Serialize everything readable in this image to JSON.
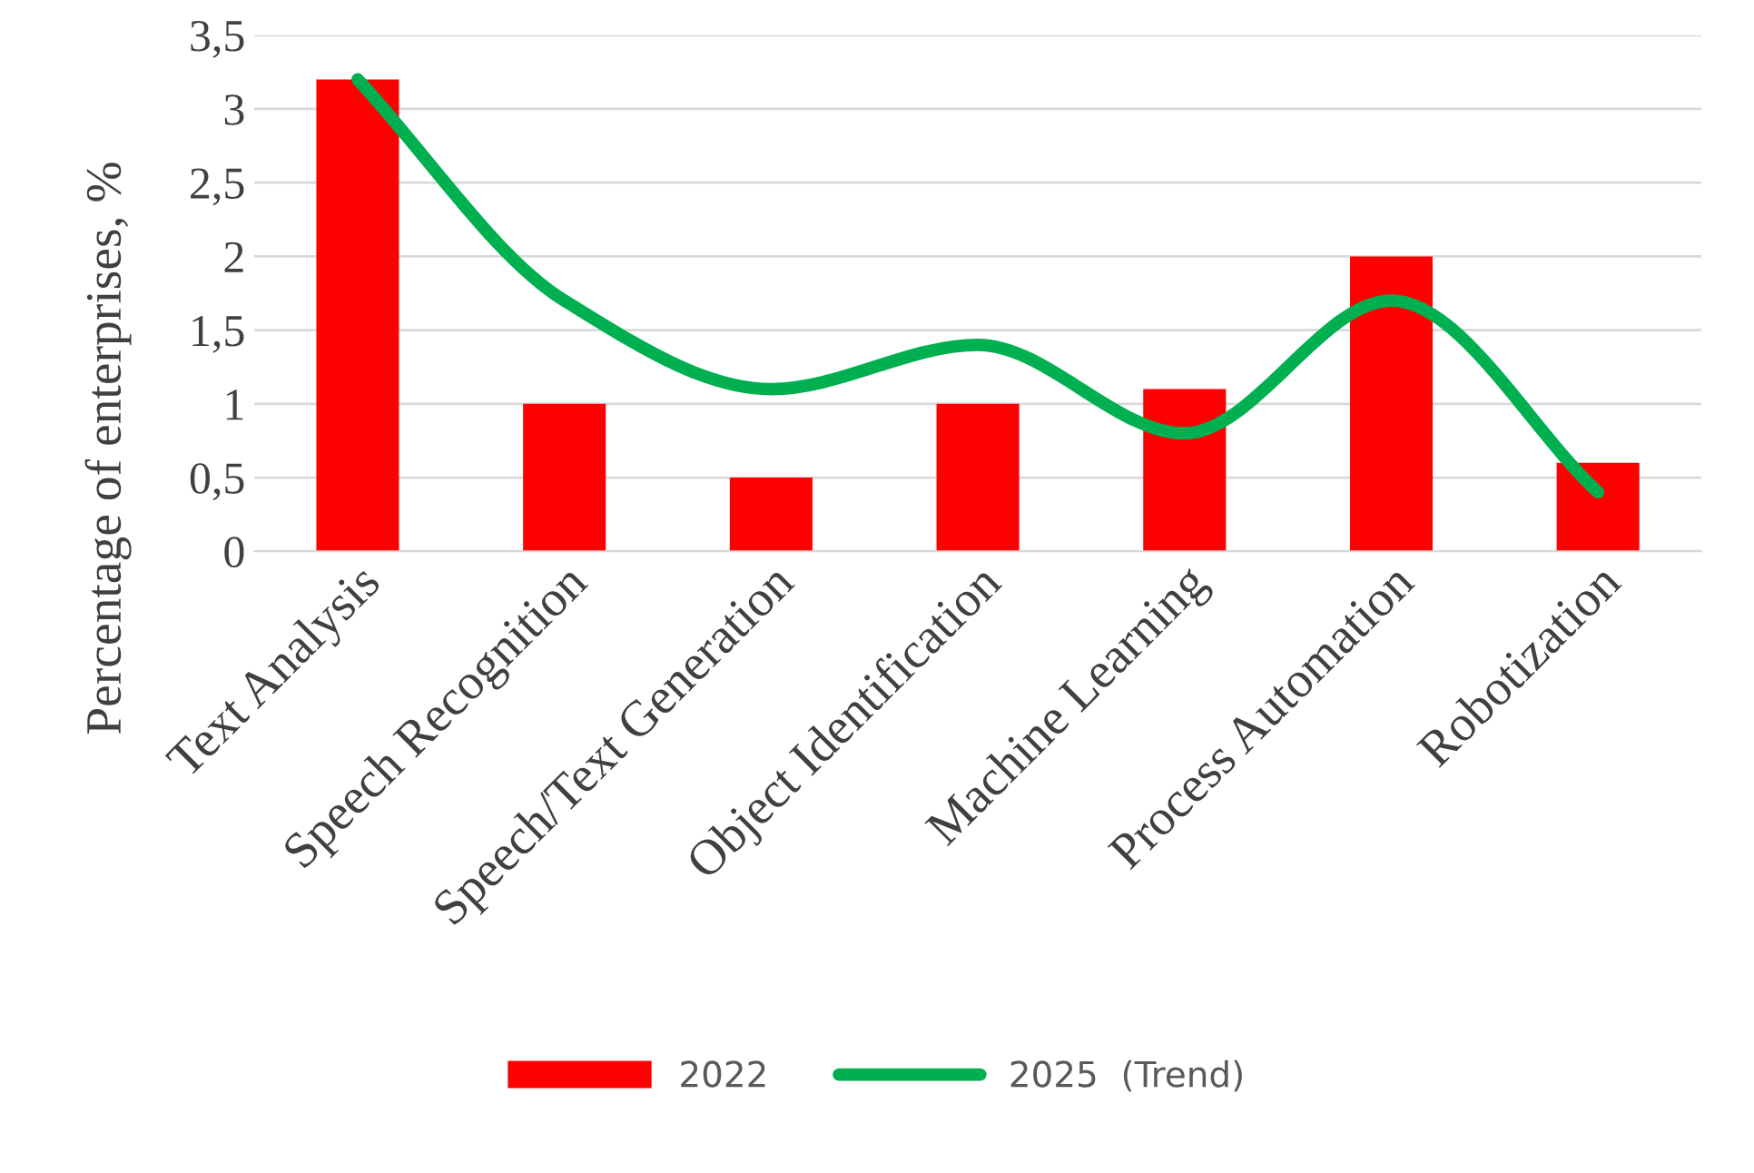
{
  "chart_data": {
    "type": "bar",
    "ylabel": "Percentage of enterprises, %",
    "categories": [
      "Text Analysis",
      "Speech Recognition",
      "Speech/Text Generation",
      "Object Identification",
      "Machine Learning",
      "Process Automation",
      "Robotization"
    ],
    "series": [
      {
        "name": "2022",
        "color": "#ff0000",
        "values": [
          3.2,
          1,
          0.5,
          1,
          1.1,
          2,
          0.6
        ]
      },
      {
        "name": "2025  (Trend)",
        "type": "line",
        "color": "#00b050",
        "values": [
          3.2,
          1.7,
          1.1,
          1.4,
          0.8,
          1.7,
          0.4
        ]
      }
    ],
    "ylim": [
      0,
      3.5
    ],
    "yticks": [
      0,
      {
        "value": 0.5,
        "label": "0,5"
      },
      1,
      {
        "value": 1.5,
        "label": "1,5"
      },
      2,
      {
        "value": 2.5,
        "label": "2,5"
      },
      3,
      {
        "value": 3.5,
        "label": "3,5"
      }
    ],
    "grid": "y",
    "legend": "bottom"
  }
}
